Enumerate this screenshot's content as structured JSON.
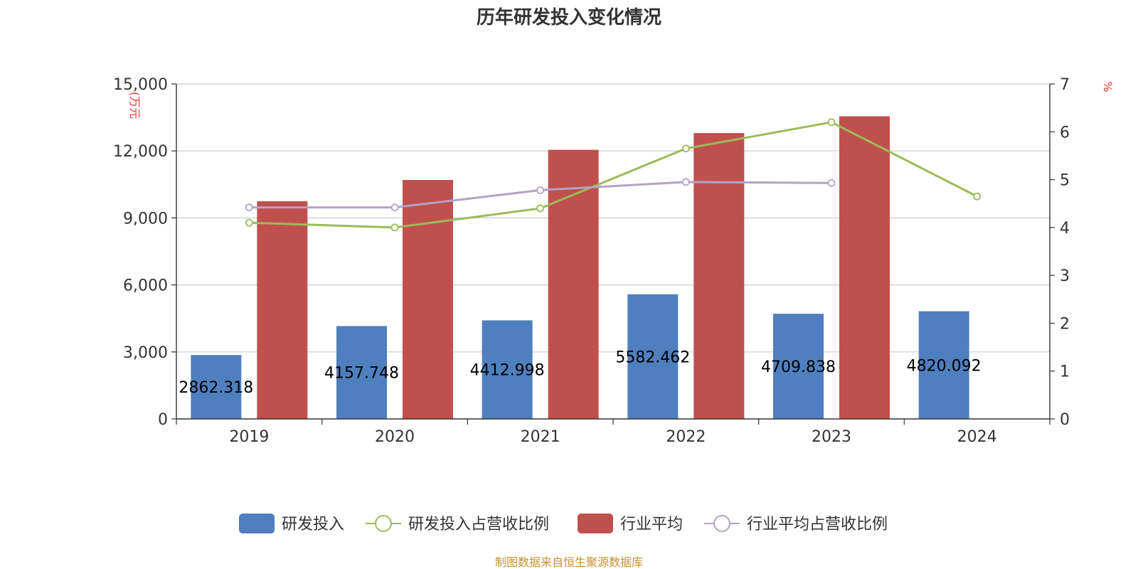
{
  "chart_data": {
    "type": "bar",
    "title": "历年研发投入变化情况",
    "categories": [
      "2019",
      "2020",
      "2021",
      "2022",
      "2023",
      "2024"
    ],
    "y_left": {
      "unit": "(万元",
      "ylim": [
        0,
        15000
      ],
      "ticks": [
        "0",
        "3,000",
        "6,000",
        "9,000",
        "12,000",
        "15,000"
      ],
      "tick_values": [
        0,
        3000,
        6000,
        9000,
        12000,
        15000
      ]
    },
    "y_right": {
      "unit": "%",
      "ylim": [
        0,
        7
      ],
      "ticks": [
        "0",
        "1",
        "2",
        "3",
        "4",
        "5",
        "6",
        "7"
      ],
      "tick_values": [
        0,
        1,
        2,
        3,
        4,
        5,
        6,
        7
      ]
    },
    "series": [
      {
        "name": "研发投入",
        "kind": "bar",
        "axis": "left",
        "color": "#4f7fbe",
        "values": [
          2862.318,
          4157.748,
          4412.998,
          5582.462,
          4709.838,
          4820.092
        ],
        "labels": [
          "2862.318",
          "4157.748",
          "4412.998",
          "5582.462",
          "4709.838",
          "4820.092"
        ]
      },
      {
        "name": "行业平均",
        "kind": "bar",
        "axis": "left",
        "color": "#c0504d",
        "values": [
          9750,
          10700,
          12050,
          12800,
          13550,
          null
        ]
      },
      {
        "name": "研发投入占营收比例",
        "kind": "line",
        "axis": "right",
        "color": "#9bbb59",
        "values": [
          4.1,
          4.0,
          4.4,
          5.65,
          6.2,
          4.65
        ]
      },
      {
        "name": "行业平均占营收比例",
        "kind": "line",
        "axis": "right",
        "color": "#b3a2c7",
        "values": [
          4.42,
          4.42,
          4.78,
          4.95,
          4.93,
          null
        ]
      }
    ],
    "legend": [
      "研发投入",
      "研发投入占营收比例",
      "行业平均",
      "行业平均占营收比例"
    ],
    "legend_position": "bottom",
    "grid": true
  },
  "source_text": "制图数据来自恒生聚源数据库"
}
